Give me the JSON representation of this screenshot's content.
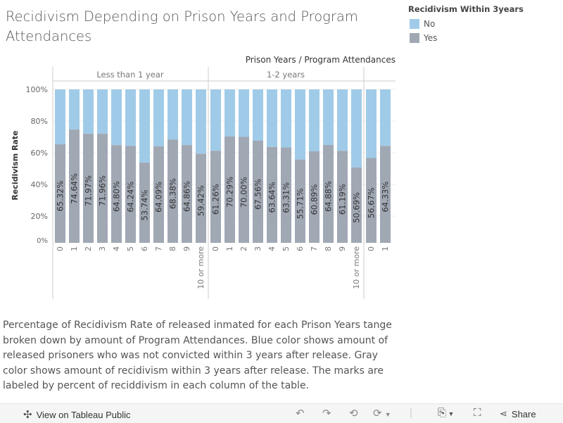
{
  "title": "Recidivism Depending on Prison Years and Program Attendances",
  "legend": {
    "title": "Recidivism Within 3years",
    "items": [
      {
        "label": "No",
        "color": "#a0cbe8"
      },
      {
        "label": "Yes",
        "color": "#a0a8b4"
      }
    ]
  },
  "chart_data": {
    "type": "bar",
    "stacked": true,
    "column_header": "Prison Years  /  Program Attendances",
    "ylabel": "Recidivism Rate",
    "ylim": [
      0,
      100
    ],
    "yticks": [
      "0%",
      "20%",
      "40%",
      "60%",
      "80%",
      "100%"
    ],
    "grid": true,
    "groups": [
      {
        "label": "Less than 1 year",
        "categories": [
          "0",
          "1",
          "2",
          "3",
          "4",
          "5",
          "6",
          "7",
          "8",
          "9",
          "10 or more"
        ],
        "yes": [
          65.32,
          74.64,
          71.97,
          71.96,
          64.8,
          64.24,
          53.74,
          64.09,
          68.38,
          64.86,
          59.42
        ],
        "no": [
          34.68,
          25.36,
          28.03,
          28.04,
          35.2,
          35.76,
          46.26,
          35.91,
          31.62,
          35.14,
          40.58
        ]
      },
      {
        "label": "1-2 years",
        "categories": [
          "0",
          "1",
          "2",
          "3",
          "4",
          "5",
          "6",
          "7",
          "8",
          "9",
          "10 or more"
        ],
        "yes": [
          61.26,
          70.29,
          70.0,
          67.56,
          63.64,
          63.31,
          55.71,
          60.89,
          64.88,
          61.19,
          50.69
        ],
        "no": [
          38.74,
          29.71,
          30.0,
          32.44,
          36.36,
          36.69,
          44.29,
          39.11,
          35.12,
          38.81,
          49.31
        ]
      },
      {
        "label": "",
        "categories": [
          "0",
          "1"
        ],
        "yes": [
          56.67,
          64.33
        ],
        "no": [
          43.33,
          35.67
        ]
      }
    ]
  },
  "caption": "Percentage of Recidivism Rate of released inmated for each Prison Years tange broken down by amount of Program Attendances.  Blue color shows amount of released prisoners who was not convicted within 3 years after release. Gray color shows amount of recidivism within 3 years after release. The marks are labeled by percent of reciddivism in each column of the table.",
  "toolbar": {
    "view_label": "View on Tableau Public",
    "share_label": "Share"
  }
}
